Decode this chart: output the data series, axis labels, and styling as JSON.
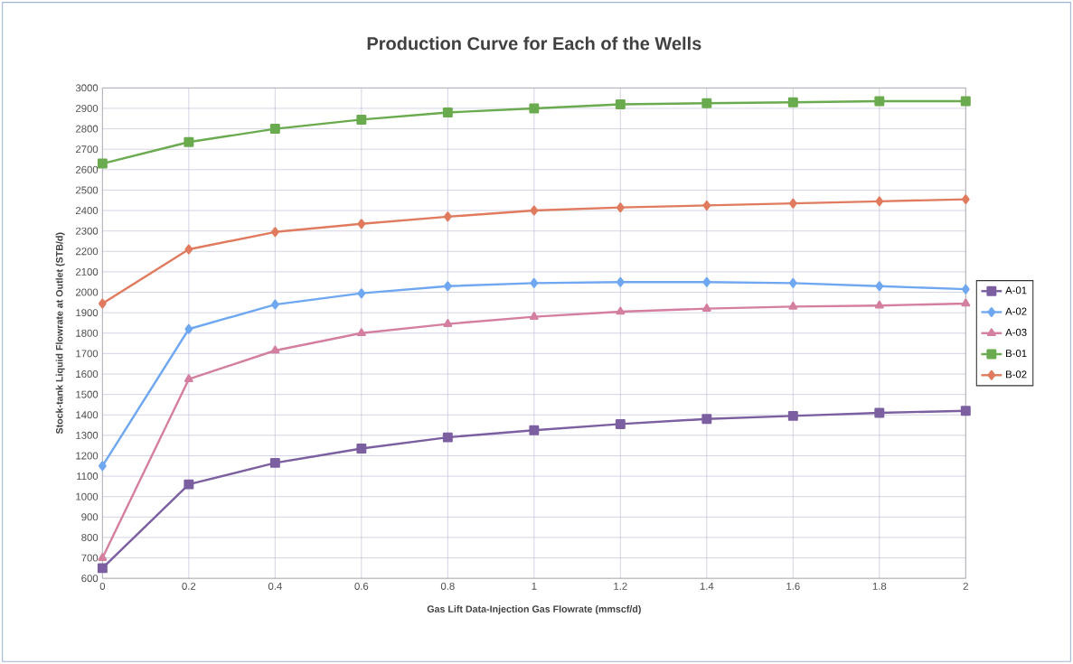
{
  "chart_data": {
    "type": "line",
    "title": "Production Curve for Each of the Wells",
    "xlabel": "Gas Lift Data-Injection Gas Flowrate (mmscf/d)",
    "ylabel": "Stock-tank Liquid Flowrate at Outlet (STB/d)",
    "x": [
      0,
      0.2,
      0.4,
      0.6,
      0.8,
      1,
      1.2,
      1.4,
      1.6,
      1.8,
      2
    ],
    "series": [
      {
        "name": "A-01",
        "color": "#7b5fa0",
        "marker": "square",
        "values": [
          650,
          1060,
          1165,
          1235,
          1290,
          1325,
          1355,
          1380,
          1395,
          1410,
          1420
        ]
      },
      {
        "name": "A-02",
        "color": "#6fa8f0",
        "marker": "diamond",
        "values": [
          1150,
          1820,
          1940,
          1995,
          2030,
          2045,
          2050,
          2050,
          2045,
          2030,
          2015
        ]
      },
      {
        "name": "A-03",
        "color": "#d47fa0",
        "marker": "triangle",
        "values": [
          700,
          1575,
          1715,
          1800,
          1845,
          1880,
          1905,
          1920,
          1930,
          1935,
          1945
        ]
      },
      {
        "name": "B-01",
        "color": "#6aab4f",
        "marker": "square",
        "values": [
          2630,
          2735,
          2800,
          2845,
          2880,
          2900,
          2920,
          2925,
          2930,
          2935,
          2935
        ]
      },
      {
        "name": "B-02",
        "color": "#e07b5f",
        "marker": "diamond",
        "values": [
          1945,
          2210,
          2295,
          2335,
          2370,
          2400,
          2415,
          2425,
          2435,
          2445,
          2455
        ]
      }
    ],
    "xlim": [
      0,
      2
    ],
    "xticks": [
      0,
      0.2,
      0.4,
      0.6,
      0.8,
      1,
      1.2,
      1.4,
      1.6,
      1.8,
      2
    ],
    "ylim": [
      600,
      3000
    ],
    "yticks": [
      600,
      700,
      800,
      900,
      1000,
      1100,
      1200,
      1300,
      1400,
      1500,
      1600,
      1700,
      1800,
      1900,
      2000,
      2100,
      2200,
      2300,
      2400,
      2500,
      2600,
      2700,
      2800,
      2900,
      3000
    ],
    "grid": true,
    "legend": "right",
    "line_style": "solid"
  }
}
